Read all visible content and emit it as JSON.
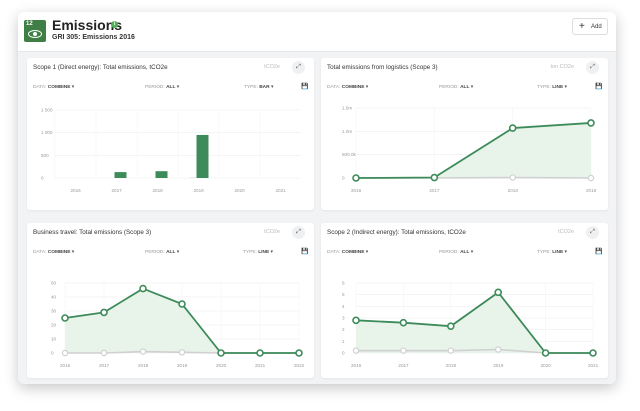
{
  "header": {
    "sdg_number": "12",
    "title": "Emissions",
    "subtitle": "GRI 305: Emissions 2016",
    "add_label": "Add"
  },
  "controls": {
    "data_label": "DATA:",
    "period_label": "PERIOD:",
    "type_label": "TYPE:",
    "combine": "COMBINE",
    "all": "ALL",
    "bar": "BAR",
    "line": "LINE"
  },
  "colors": {
    "accent": "#3d8b5a",
    "fill": "#e8f3ea",
    "secondary": "#d0d0d0"
  },
  "cards": [
    {
      "title": "Scope 1 (Direct energy): Total emissions, tCO2e",
      "unit": "tCO2e",
      "type_value": "BAR"
    },
    {
      "title": "Total emissions from logistics (Scope 3)",
      "unit": "ton CO2e",
      "type_value": "LINE"
    },
    {
      "title": "Business travel: Total emissions (Scope 3)",
      "unit": "tCO2e",
      "type_value": "LINE"
    },
    {
      "title": "Scope 2 (Indirect energy): Total emissions, tCO2e",
      "unit": "tCO2e",
      "type_value": "LINE"
    }
  ],
  "chart_data": [
    {
      "type": "bar",
      "categories": [
        "2016",
        "2017",
        "2018",
        "2019",
        "2020",
        "2021"
      ],
      "yticks": [
        "0",
        "500",
        "1 000",
        "1 500"
      ],
      "ylim": [
        0,
        1500
      ],
      "series": [
        {
          "values": [
            0,
            0,
            0,
            10,
            0,
            0
          ]
        },
        {
          "values": [
            0,
            130,
            150,
            950,
            0,
            0
          ]
        }
      ]
    },
    {
      "type": "area",
      "categories": [
        "2016",
        "2017",
        "2018",
        "2019"
      ],
      "yticks": [
        "0",
        "500.0k",
        "1.0m",
        "1.5m"
      ],
      "ylim": [
        0,
        1500000
      ],
      "series": [
        {
          "values": [
            0,
            10000,
            1070000,
            1180000
          ]
        },
        {
          "values": [
            0,
            0,
            10000,
            0
          ]
        }
      ]
    },
    {
      "type": "area",
      "categories": [
        "2016",
        "2017",
        "2018",
        "2019",
        "2020",
        "2021",
        "2022"
      ],
      "yticks": [
        "0",
        "10",
        "20",
        "30",
        "40",
        "50"
      ],
      "ylim": [
        0,
        50
      ],
      "series": [
        {
          "values": [
            25,
            29,
            46,
            35,
            0,
            0,
            0
          ]
        },
        {
          "values": [
            0,
            0,
            1,
            0.5,
            0,
            0,
            0
          ]
        }
      ]
    },
    {
      "type": "area",
      "categories": [
        "2016",
        "2017",
        "2018",
        "2019",
        "2020",
        "2021"
      ],
      "yticks": [
        "0",
        "1",
        "2",
        "3",
        "4",
        "5",
        "6"
      ],
      "ylim": [
        0,
        6
      ],
      "series": [
        {
          "values": [
            2.8,
            2.6,
            2.3,
            5.2,
            0,
            0
          ]
        },
        {
          "values": [
            0.2,
            0.2,
            0.2,
            0.3,
            0,
            0
          ]
        }
      ]
    }
  ]
}
